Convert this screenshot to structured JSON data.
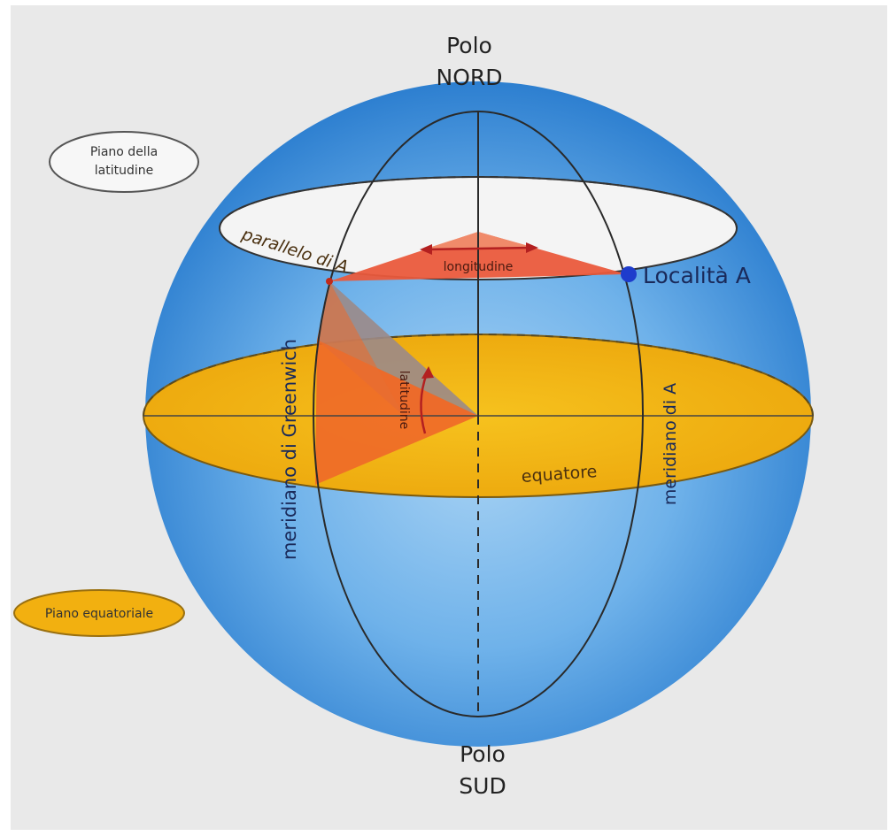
{
  "labels": {
    "north_line1": "Polo",
    "north_line2": "NORD",
    "south_line1": "Polo",
    "south_line2": "SUD",
    "lat_plane_line1": "Piano della",
    "lat_plane_line2": "latitudine",
    "eq_plane": "Piano equatoriale",
    "parallel": "parallelo di A",
    "longitude": "longitudine",
    "location": "Località A",
    "greenwich": "meridiano di Greenwich",
    "latitude": "latitudine",
    "meridian_a": "meridiano di A",
    "equator": "equatore"
  },
  "colors": {
    "background": "#e9e9e9",
    "sphere_light": "#a9d3f4",
    "sphere_mid": "#4f9ee0",
    "sphere_dark": "#2d7fd0",
    "equatorial_plane": "#f2b010",
    "latitude_plane": "#f4f4f4",
    "longitude_triangle": "#ea5a3c",
    "latitude_triangle": "#ef6a28",
    "grey_triangle": "#9b8a88",
    "location_dot": "#1e3ccc",
    "lines": "#333333",
    "arrows": "#b32020"
  }
}
